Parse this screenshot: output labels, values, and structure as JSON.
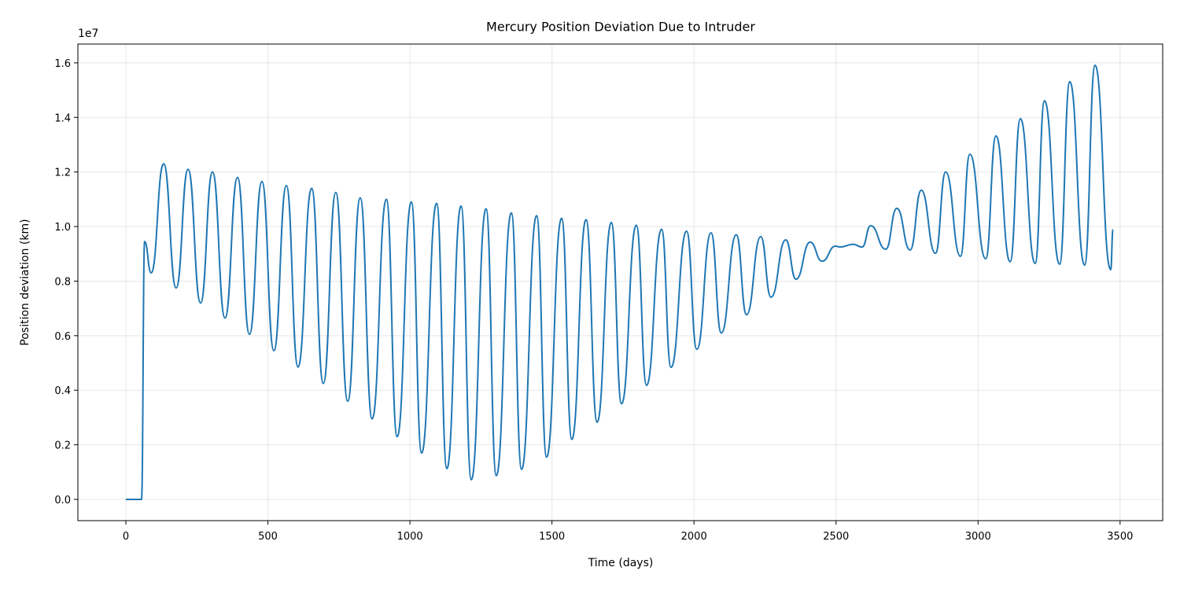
{
  "chart_data": {
    "type": "line",
    "title": "Mercury Position Deviation Due to Intruder",
    "x_label": "Time (days)",
    "y_label": "Position deviation (km)",
    "y_offset_label": "1e7",
    "grid": true,
    "xlim": [
      -169,
      3650
    ],
    "ylim": [
      -0.078,
      1.669
    ],
    "xticks": [
      0,
      500,
      1000,
      1500,
      2000,
      2500,
      3000,
      3500
    ],
    "yticks": [
      {
        "value": 0,
        "label": "0.0"
      },
      0.2,
      0.4,
      0.6,
      0.8,
      {
        "value": 1,
        "label": "1.0"
      },
      1.2,
      1.4,
      1.6
    ],
    "series": [
      {
        "color": "#1f77b4",
        "x": [
          0,
          55,
          66,
          89,
          133,
          177,
          219,
          263,
          305,
          349,
          393,
          435,
          479,
          521,
          565,
          606,
          654,
          695,
          739,
          781,
          825,
          867,
          917,
          955,
          1005,
          1041,
          1094,
          1130,
          1180,
          1216,
          1268,
          1304,
          1357,
          1393,
          1446,
          1481,
          1534,
          1570,
          1620,
          1659,
          1709,
          1745,
          1797,
          1833,
          1886,
          1919,
          1974,
          2010,
          2060,
          2096,
          2149,
          2185,
          2235,
          2271,
          2323,
          2359,
          2409,
          2451,
          2498,
          2515,
          2560,
          2592,
          2622,
          2675,
          2714,
          2761,
          2800,
          2850,
          2886,
          2938,
          2971,
          3027,
          3063,
          3113,
          3149,
          3201,
          3234,
          3287,
          3323,
          3375,
          3412,
          3467,
          3475
        ],
        "values": [
          0,
          0,
          0.945,
          0.83,
          1.23,
          0.775,
          1.21,
          0.72,
          1.2,
          0.665,
          1.18,
          0.605,
          1.165,
          0.545,
          1.15,
          0.485,
          1.14,
          0.425,
          1.125,
          0.36,
          1.105,
          0.295,
          1.1,
          0.23,
          1.09,
          0.17,
          1.085,
          0.113,
          1.075,
          0.072,
          1.065,
          0.087,
          1.05,
          0.11,
          1.04,
          0.155,
          1.03,
          0.22,
          1.025,
          0.283,
          1.015,
          0.35,
          1.005,
          0.418,
          0.99,
          0.484,
          0.983,
          0.55,
          0.977,
          0.61,
          0.97,
          0.677,
          0.963,
          0.741,
          0.951,
          0.807,
          0.943,
          0.873,
          0.928,
          0.925,
          0.935,
          0.925,
          1.003,
          0.917,
          1.067,
          0.914,
          1.133,
          0.902,
          1.2,
          0.891,
          1.265,
          0.882,
          1.332,
          0.871,
          1.395,
          0.865,
          1.461,
          0.862,
          1.531,
          0.859,
          1.591,
          0.842,
          0.989
        ]
      }
    ]
  }
}
